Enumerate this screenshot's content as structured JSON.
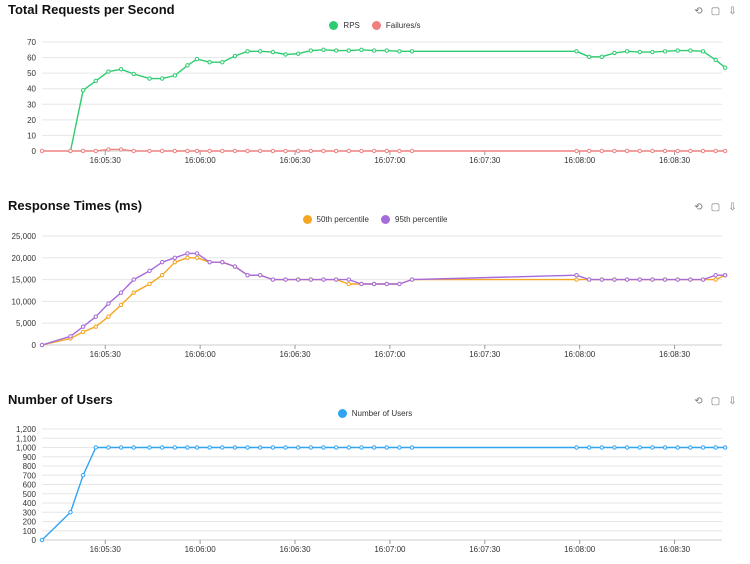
{
  "chart_data": [
    {
      "type": "line",
      "title": "Total Requests per Second",
      "legend": "top-center",
      "grid": true,
      "ylim": [
        0,
        70
      ],
      "yticks": [
        0,
        10,
        20,
        30,
        40,
        50,
        60,
        70
      ],
      "xlim": [
        "16:05:10",
        "16:08:45"
      ],
      "xticks": [
        "16:05:30",
        "16:06:00",
        "16:06:30",
        "16:07:00",
        "16:07:30",
        "16:08:00",
        "16:08:30"
      ],
      "series": [
        {
          "name": "RPS",
          "color": "#2ecc71",
          "points": [
            [
              "16:05:19",
              0
            ],
            [
              "16:05:23",
              39
            ],
            [
              "16:05:27",
              45
            ],
            [
              "16:05:31",
              51
            ],
            [
              "16:05:35",
              52.5
            ],
            [
              "16:05:39",
              49.5
            ],
            [
              "16:05:44",
              46.5
            ],
            [
              "16:05:48",
              46.5
            ],
            [
              "16:05:52",
              48.5
            ],
            [
              "16:05:56",
              55
            ],
            [
              "16:05:59",
              59
            ],
            [
              "16:06:03",
              57
            ],
            [
              "16:06:07",
              57
            ],
            [
              "16:06:11",
              61
            ],
            [
              "16:06:15",
              64
            ],
            [
              "16:06:19",
              64
            ],
            [
              "16:06:23",
              63.5
            ],
            [
              "16:06:27",
              62
            ],
            [
              "16:06:31",
              62.5
            ],
            [
              "16:06:35",
              64.5
            ],
            [
              "16:06:39",
              65
            ],
            [
              "16:06:43",
              64.5
            ],
            [
              "16:06:47",
              64.5
            ],
            [
              "16:06:51",
              65
            ],
            [
              "16:06:55",
              64.5
            ],
            [
              "16:06:59",
              64.5
            ],
            [
              "16:07:03",
              64
            ],
            [
              "16:07:07",
              64
            ],
            [
              "16:07:59",
              64
            ],
            [
              "16:08:03",
              60.5
            ],
            [
              "16:08:07",
              60.5
            ],
            [
              "16:08:11",
              63
            ],
            [
              "16:08:15",
              64
            ],
            [
              "16:08:19",
              63.5
            ],
            [
              "16:08:23",
              63.5
            ],
            [
              "16:08:27",
              64
            ],
            [
              "16:08:31",
              64.5
            ],
            [
              "16:08:35",
              64.5
            ],
            [
              "16:08:39",
              64
            ],
            [
              "16:08:43",
              58.5
            ],
            [
              "16:08:46",
              53.5
            ]
          ]
        },
        {
          "name": "Failures/s",
          "color": "#f08080",
          "points": [
            [
              "16:05:10",
              0
            ],
            [
              "16:05:19",
              0
            ],
            [
              "16:05:23",
              0
            ],
            [
              "16:05:27",
              0
            ],
            [
              "16:05:31",
              1
            ],
            [
              "16:05:35",
              1
            ],
            [
              "16:05:39",
              0
            ],
            [
              "16:05:44",
              0
            ],
            [
              "16:05:48",
              0
            ],
            [
              "16:05:52",
              0
            ],
            [
              "16:05:56",
              0
            ],
            [
              "16:05:59",
              0
            ],
            [
              "16:06:03",
              0
            ],
            [
              "16:06:07",
              0
            ],
            [
              "16:06:11",
              0
            ],
            [
              "16:06:15",
              0
            ],
            [
              "16:06:19",
              0
            ],
            [
              "16:06:23",
              0
            ],
            [
              "16:06:27",
              0
            ],
            [
              "16:06:31",
              0
            ],
            [
              "16:06:35",
              0
            ],
            [
              "16:06:39",
              0
            ],
            [
              "16:06:43",
              0
            ],
            [
              "16:06:47",
              0
            ],
            [
              "16:06:51",
              0
            ],
            [
              "16:06:55",
              0
            ],
            [
              "16:06:59",
              0
            ],
            [
              "16:07:03",
              0
            ],
            [
              "16:07:07",
              0
            ],
            [
              "16:07:59",
              0
            ],
            [
              "16:08:03",
              0
            ],
            [
              "16:08:07",
              0
            ],
            [
              "16:08:11",
              0
            ],
            [
              "16:08:15",
              0
            ],
            [
              "16:08:19",
              0
            ],
            [
              "16:08:23",
              0
            ],
            [
              "16:08:27",
              0
            ],
            [
              "16:08:31",
              0
            ],
            [
              "16:08:35",
              0
            ],
            [
              "16:08:39",
              0
            ],
            [
              "16:08:43",
              0
            ],
            [
              "16:08:46",
              0
            ]
          ]
        }
      ]
    },
    {
      "type": "line",
      "title": "Response Times (ms)",
      "legend": "top-center",
      "grid": true,
      "ylim": [
        0,
        25000
      ],
      "yticks": [
        0,
        5000,
        10000,
        15000,
        20000,
        25000
      ],
      "ytick_labels": [
        "0",
        "5,000",
        "10,000",
        "15,000",
        "20,000",
        "25,000"
      ],
      "xlim": [
        "16:05:10",
        "16:08:45"
      ],
      "xticks": [
        "16:05:30",
        "16:06:00",
        "16:06:30",
        "16:07:00",
        "16:07:30",
        "16:08:00",
        "16:08:30"
      ],
      "series": [
        {
          "name": "50th percentile",
          "color": "#f5a623",
          "points": [
            [
              "16:05:10",
              0
            ],
            [
              "16:05:19",
              1500
            ],
            [
              "16:05:23",
              3000
            ],
            [
              "16:05:27",
              4200
            ],
            [
              "16:05:31",
              6500
            ],
            [
              "16:05:35",
              9200
            ],
            [
              "16:05:39",
              12000
            ],
            [
              "16:05:44",
              14000
            ],
            [
              "16:05:48",
              16000
            ],
            [
              "16:05:52",
              19000
            ],
            [
              "16:05:56",
              20000
            ],
            [
              "16:05:59",
              20000
            ],
            [
              "16:06:03",
              19000
            ],
            [
              "16:06:07",
              19000
            ],
            [
              "16:06:11",
              18000
            ],
            [
              "16:06:15",
              16000
            ],
            [
              "16:06:19",
              16000
            ],
            [
              "16:06:23",
              15000
            ],
            [
              "16:06:27",
              15000
            ],
            [
              "16:06:31",
              15000
            ],
            [
              "16:06:35",
              15000
            ],
            [
              "16:06:39",
              15000
            ],
            [
              "16:06:43",
              15000
            ],
            [
              "16:06:47",
              14000
            ],
            [
              "16:06:51",
              14000
            ],
            [
              "16:06:55",
              14000
            ],
            [
              "16:06:59",
              14000
            ],
            [
              "16:07:03",
              14000
            ],
            [
              "16:07:07",
              15000
            ],
            [
              "16:07:59",
              15000
            ],
            [
              "16:08:03",
              15000
            ],
            [
              "16:08:07",
              15000
            ],
            [
              "16:08:11",
              15000
            ],
            [
              "16:08:15",
              15000
            ],
            [
              "16:08:19",
              15000
            ],
            [
              "16:08:23",
              15000
            ],
            [
              "16:08:27",
              15000
            ],
            [
              "16:08:31",
              15000
            ],
            [
              "16:08:35",
              15000
            ],
            [
              "16:08:39",
              15000
            ],
            [
              "16:08:43",
              15000
            ],
            [
              "16:08:46",
              16000
            ]
          ]
        },
        {
          "name": "95th percentile",
          "color": "#a66bdb",
          "points": [
            [
              "16:05:10",
              0
            ],
            [
              "16:05:19",
              2000
            ],
            [
              "16:05:23",
              4200
            ],
            [
              "16:05:27",
              6500
            ],
            [
              "16:05:31",
              9500
            ],
            [
              "16:05:35",
              12000
            ],
            [
              "16:05:39",
              15000
            ],
            [
              "16:05:44",
              17000
            ],
            [
              "16:05:48",
              19000
            ],
            [
              "16:05:52",
              20000
            ],
            [
              "16:05:56",
              21000
            ],
            [
              "16:05:59",
              21000
            ],
            [
              "16:06:03",
              19000
            ],
            [
              "16:06:07",
              19000
            ],
            [
              "16:06:11",
              18000
            ],
            [
              "16:06:15",
              16000
            ],
            [
              "16:06:19",
              16000
            ],
            [
              "16:06:23",
              15000
            ],
            [
              "16:06:27",
              15000
            ],
            [
              "16:06:31",
              15000
            ],
            [
              "16:06:35",
              15000
            ],
            [
              "16:06:39",
              15000
            ],
            [
              "16:06:43",
              15000
            ],
            [
              "16:06:47",
              15000
            ],
            [
              "16:06:51",
              14000
            ],
            [
              "16:06:55",
              14000
            ],
            [
              "16:06:59",
              14000
            ],
            [
              "16:07:03",
              14000
            ],
            [
              "16:07:07",
              15000
            ],
            [
              "16:07:59",
              16000
            ],
            [
              "16:08:03",
              15000
            ],
            [
              "16:08:07",
              15000
            ],
            [
              "16:08:11",
              15000
            ],
            [
              "16:08:15",
              15000
            ],
            [
              "16:08:19",
              15000
            ],
            [
              "16:08:23",
              15000
            ],
            [
              "16:08:27",
              15000
            ],
            [
              "16:08:31",
              15000
            ],
            [
              "16:08:35",
              15000
            ],
            [
              "16:08:39",
              15000
            ],
            [
              "16:08:43",
              16000
            ],
            [
              "16:08:46",
              16000
            ]
          ]
        }
      ]
    },
    {
      "type": "line",
      "title": "Number of Users",
      "legend": "top-center",
      "grid": true,
      "ylim": [
        0,
        1200
      ],
      "yticks": [
        0,
        100,
        200,
        300,
        400,
        500,
        600,
        700,
        800,
        900,
        1000,
        1100,
        1200
      ],
      "ytick_labels": [
        "0",
        "100",
        "200",
        "300",
        "400",
        "500",
        "600",
        "700",
        "800",
        "900",
        "1,000",
        "1,100",
        "1,200"
      ],
      "xlim": [
        "16:05:10",
        "16:08:45"
      ],
      "xticks": [
        "16:05:30",
        "16:06:00",
        "16:06:30",
        "16:07:00",
        "16:07:30",
        "16:08:00",
        "16:08:30"
      ],
      "series": [
        {
          "name": "Number of Users",
          "color": "#2fa4f3",
          "points": [
            [
              "16:05:10",
              0
            ],
            [
              "16:05:19",
              300
            ],
            [
              "16:05:23",
              700
            ],
            [
              "16:05:27",
              1000
            ],
            [
              "16:05:31",
              1000
            ],
            [
              "16:05:35",
              1000
            ],
            [
              "16:05:39",
              1000
            ],
            [
              "16:05:44",
              1000
            ],
            [
              "16:05:48",
              1000
            ],
            [
              "16:05:52",
              1000
            ],
            [
              "16:05:56",
              1000
            ],
            [
              "16:05:59",
              1000
            ],
            [
              "16:06:03",
              1000
            ],
            [
              "16:06:07",
              1000
            ],
            [
              "16:06:11",
              1000
            ],
            [
              "16:06:15",
              1000
            ],
            [
              "16:06:19",
              1000
            ],
            [
              "16:06:23",
              1000
            ],
            [
              "16:06:27",
              1000
            ],
            [
              "16:06:31",
              1000
            ],
            [
              "16:06:35",
              1000
            ],
            [
              "16:06:39",
              1000
            ],
            [
              "16:06:43",
              1000
            ],
            [
              "16:06:47",
              1000
            ],
            [
              "16:06:51",
              1000
            ],
            [
              "16:06:55",
              1000
            ],
            [
              "16:06:59",
              1000
            ],
            [
              "16:07:03",
              1000
            ],
            [
              "16:07:07",
              1000
            ],
            [
              "16:07:59",
              1000
            ],
            [
              "16:08:03",
              1000
            ],
            [
              "16:08:07",
              1000
            ],
            [
              "16:08:11",
              1000
            ],
            [
              "16:08:15",
              1000
            ],
            [
              "16:08:19",
              1000
            ],
            [
              "16:08:23",
              1000
            ],
            [
              "16:08:27",
              1000
            ],
            [
              "16:08:31",
              1000
            ],
            [
              "16:08:35",
              1000
            ],
            [
              "16:08:39",
              1000
            ],
            [
              "16:08:43",
              1000
            ],
            [
              "16:08:46",
              1000
            ]
          ]
        }
      ]
    }
  ],
  "toolbar_icons": [
    "restore-icon",
    "save-image-icon",
    "download-icon"
  ]
}
